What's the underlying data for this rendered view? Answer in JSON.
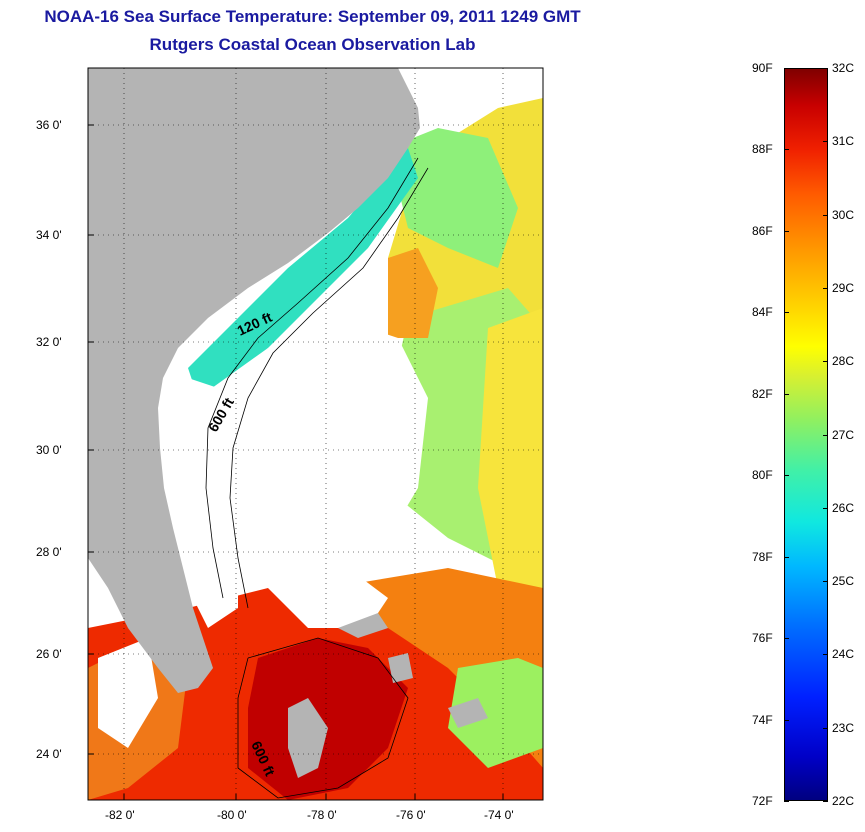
{
  "header": {
    "title": "NOAA-16 Sea Surface Temperature:  September 09, 2011 1249 GMT",
    "subtitle": "Rutgers Coastal Ocean Observation Lab"
  },
  "map": {
    "lat_labels": [
      "36 0'",
      "34 0'",
      "32 0'",
      "30 0'",
      "28 0'",
      "26 0'",
      "24 0'"
    ],
    "lon_labels": [
      "-82 0'",
      "-80 0'",
      "-78 0'",
      "-76 0'",
      "-74 0'"
    ],
    "contour_labels": [
      "120 ft",
      "600 ft",
      "600 ft"
    ],
    "colors": {
      "land": "#b4b4b4",
      "cloud": "#ffffff",
      "warm": "#f03a00",
      "hot": "#c80000",
      "orange": "#ff8c00",
      "yellow": "#f2e83a",
      "green": "#7ef07c",
      "cyan": "#30e0d0",
      "blue": "#1050e0"
    }
  },
  "colorbar": {
    "fahrenheit_labels": [
      "90F",
      "88F",
      "86F",
      "84F",
      "82F",
      "80F",
      "78F",
      "76F",
      "74F",
      "72F"
    ],
    "celsius_labels": [
      "32C",
      "31C",
      "30C",
      "29C",
      "28C",
      "27C",
      "26C",
      "25C",
      "24C",
      "23C",
      "22C"
    ],
    "range_f": [
      72,
      90
    ],
    "range_c": [
      22,
      32
    ]
  }
}
